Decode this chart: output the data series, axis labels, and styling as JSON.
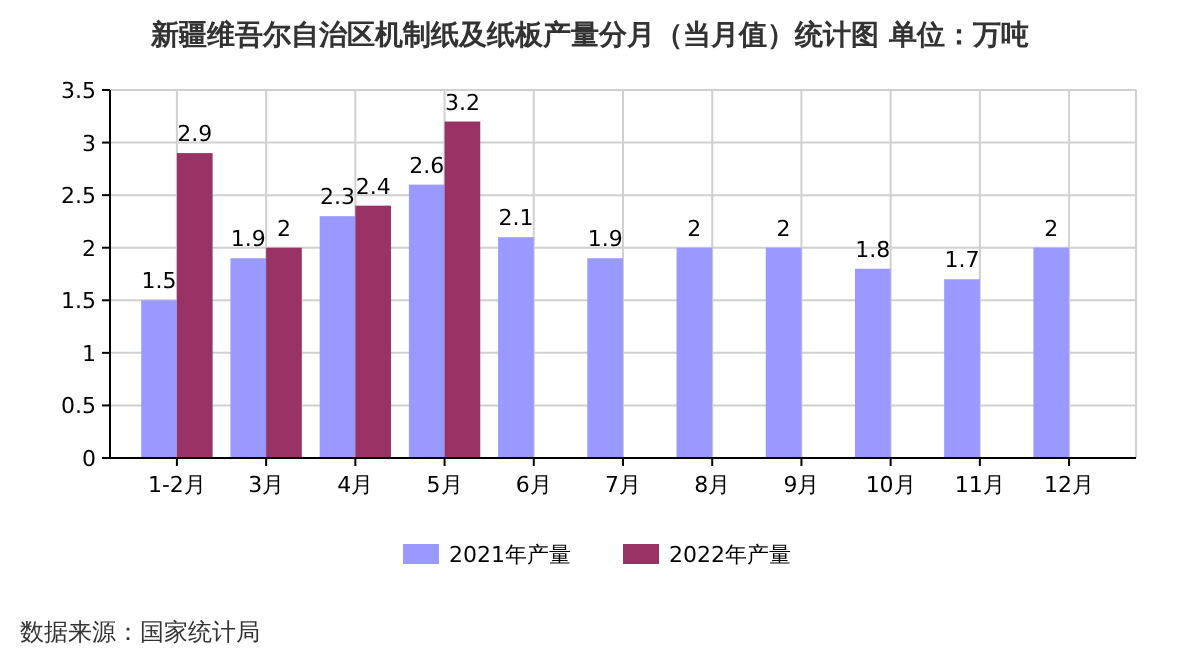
{
  "chart_data": {
    "type": "bar",
    "title": "新疆维吾尔自治区机制纸及纸板产量分月（当月值）统计图 单位：万吨",
    "categories": [
      "1-2月",
      "3月",
      "4月",
      "5月",
      "6月",
      "7月",
      "8月",
      "9月",
      "10月",
      "11月",
      "12月"
    ],
    "series": [
      {
        "name": "2021年产量",
        "color": "#9999ff",
        "values": [
          1.5,
          1.9,
          2.3,
          2.6,
          2.1,
          1.9,
          2,
          2,
          1.8,
          1.7,
          2
        ]
      },
      {
        "name": "2022年产量",
        "color": "#993366",
        "values": [
          2.9,
          2,
          2.4,
          3.2,
          null,
          null,
          null,
          null,
          null,
          null,
          null
        ]
      }
    ],
    "ylim": [
      0,
      3.5
    ],
    "yticks": [
      0,
      {
        "value": 0.5,
        "label": "0.5"
      },
      1,
      {
        "value": 1.5,
        "label": "1.5"
      },
      2,
      {
        "value": 2.5,
        "label": "2.5"
      },
      3,
      {
        "value": 3.5,
        "label": "3.5"
      }
    ],
    "grid": true,
    "legend": "bottom",
    "data_labels": true,
    "annotations": [
      "数据来源：国家统计局"
    ]
  }
}
